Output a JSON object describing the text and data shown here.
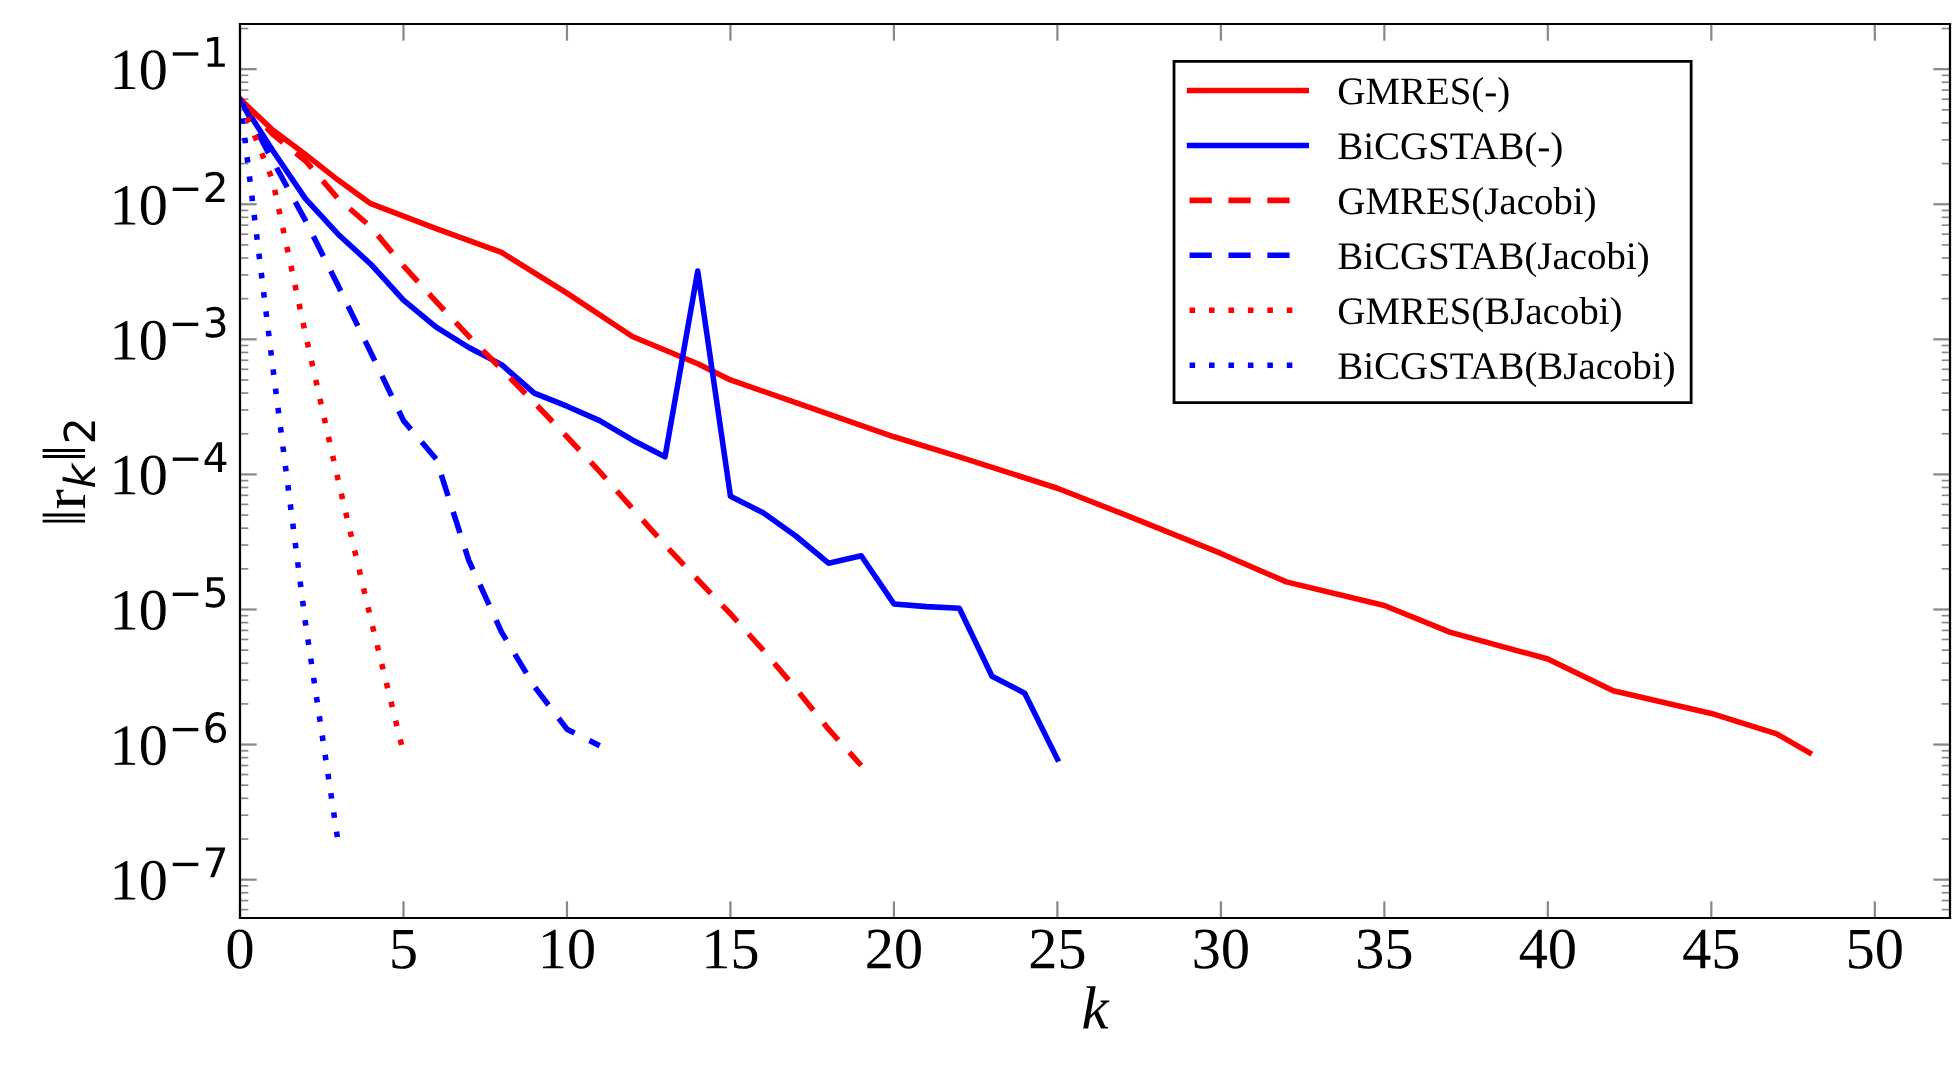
{
  "chart_data": {
    "type": "line",
    "xlabel": "k",
    "ylabel": "‖r$_{k}$‖$_{2}$",
    "log": "y",
    "xlim": [
      0,
      52.3
    ],
    "xticks": [
      0,
      5,
      10,
      15,
      20,
      25,
      30,
      35,
      40,
      45,
      50
    ],
    "ylim": [
      5.2e-08,
      0.216
    ],
    "yticks": [
      {
        "value": 1e-07,
        "label": "10$^{−7}$"
      },
      {
        "value": 1e-06,
        "label": "10$^{−6}$"
      },
      {
        "value": 1e-05,
        "label": "10$^{−5}$"
      },
      {
        "value": 0.0001,
        "label": "10$^{−4}$"
      },
      {
        "value": 0.001,
        "label": "10$^{−3}$"
      },
      {
        "value": 0.01,
        "label": "10$^{−2}$"
      },
      {
        "value": 0.1,
        "label": "10$^{−1}$"
      }
    ],
    "grid": false,
    "legend": "top right",
    "series": [
      {
        "name": "GMRES(-)",
        "color": "#ff0000",
        "line_style": "solid",
        "x": [
          0,
          1,
          2,
          3,
          4,
          6,
          8,
          10,
          12,
          14,
          15,
          17,
          20,
          22,
          25,
          27,
          30,
          32,
          35,
          37,
          40,
          42,
          45,
          47,
          48
        ],
        "values": [
          0.06,
          0.0355,
          0.0234,
          0.0151,
          0.0101,
          0.0066,
          0.0044,
          0.0022,
          0.00105,
          0.00066,
          0.0005,
          0.00034,
          0.00019,
          0.000135,
          7.9e-05,
          5.1e-05,
          2.6e-05,
          1.6e-05,
          1.07e-05,
          6.8e-06,
          4.3e-06,
          2.5e-06,
          1.7e-06,
          1.2e-06,
          8.7e-07
        ]
      },
      {
        "name": "BiCGSTAB(-)",
        "color": "#0000ff",
        "line_style": "solid",
        "x": [
          0,
          1,
          2,
          3,
          4,
          5,
          6,
          7,
          8,
          9,
          10,
          11,
          12,
          13,
          14,
          15,
          16,
          17,
          18,
          19,
          20,
          21,
          22,
          23,
          24,
          25
        ],
        "values": [
          0.06,
          0.025,
          0.011,
          0.006,
          0.0036,
          0.00195,
          0.00123,
          0.00087,
          0.00065,
          0.0004,
          0.00032,
          0.00025,
          0.00018,
          0.000135,
          0.0032,
          6.9e-05,
          5.2e-05,
          3.5e-05,
          2.2e-05,
          2.5e-05,
          1.1e-05,
          1.05e-05,
          1.02e-05,
          3.2e-06,
          2.4e-06,
          7.8e-07
        ]
      },
      {
        "name": "GMRES(Jacobi)",
        "color": "#ff0000",
        "line_style": "dashed",
        "x": [
          0,
          1,
          2,
          3,
          4,
          5,
          6,
          7,
          8,
          9,
          10,
          11,
          12,
          13,
          14,
          15,
          16,
          17,
          18,
          19
        ],
        "values": [
          0.06,
          0.033,
          0.021,
          0.011,
          0.0068,
          0.0035,
          0.0019,
          0.00105,
          0.0006,
          0.00034,
          0.00019,
          0.000105,
          5.6e-05,
          3e-05,
          1.66e-05,
          9.3e-06,
          5e-06,
          2.6e-06,
          1.3e-06,
          7e-07
        ]
      },
      {
        "name": "BiCGSTAB(Jacobi)",
        "color": "#0000ff",
        "line_style": "dashed",
        "x": [
          0,
          1,
          2,
          3,
          4,
          5,
          6,
          7,
          8,
          9,
          10,
          11
        ],
        "values": [
          0.06,
          0.021,
          0.0076,
          0.0025,
          0.0008,
          0.00025,
          0.00013,
          2.3e-05,
          6.8e-06,
          2.7e-06,
          1.3e-06,
          9.8e-07
        ]
      },
      {
        "name": "GMRES(BJacobi)",
        "color": "#ff0000",
        "line_style": "dotted",
        "x": [
          0,
          1,
          2,
          3,
          4,
          5
        ],
        "values": [
          0.06,
          0.015,
          0.0011,
          9.1e-05,
          8.5e-06,
          8.7e-07
        ]
      },
      {
        "name": "BiCGSTAB(BJacobi)",
        "color": "#0000ff",
        "line_style": "dotted",
        "x": [
          0,
          1,
          2,
          3
        ],
        "values": [
          0.06,
          0.00063,
          8e-06,
          1.9e-07
        ]
      }
    ]
  }
}
